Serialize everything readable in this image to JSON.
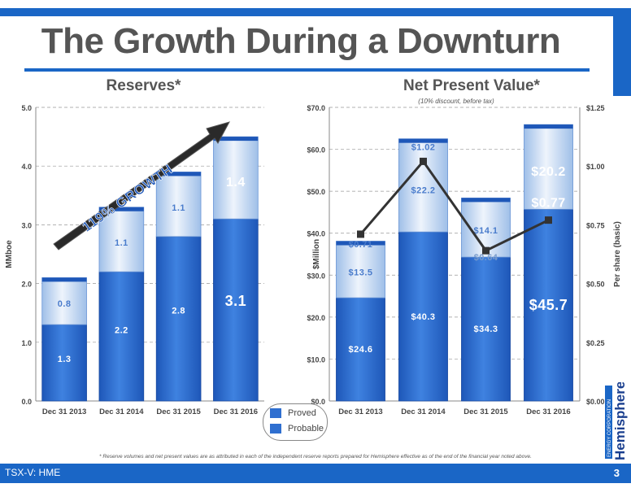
{
  "slide": {
    "title": "The Growth During a Downturn",
    "footnote": "* Reserve volumes and net present values are as attributed in each of the independent reserve reports prepared for Hemisphere effective as of the end of the financial year noted above.",
    "ticker": "TSX-V: HME",
    "page": "3",
    "logo_text": "Hemisphere",
    "logo_tagline": "ENERGY CORPORATION"
  },
  "legend": {
    "proved": "Proved",
    "probable": "Probable"
  },
  "colors": {
    "proved": "#2f6fd0",
    "probable": "#cfe0f6",
    "accent": "#1a66c6",
    "line": "#333333"
  },
  "chart_data": [
    {
      "type": "bar",
      "stacked": true,
      "title": "Reserves*",
      "ylabel": "MMboe",
      "ylim": [
        0,
        5
      ],
      "yticks": [
        "0.0",
        "1.0",
        "2.0",
        "3.0",
        "4.0",
        "5.0"
      ],
      "categories": [
        "Dec 31 2013",
        "Dec 31 2014",
        "Dec 31 2015",
        "Dec 31 2016"
      ],
      "series": [
        {
          "name": "Proved",
          "values": [
            1.3,
            2.2,
            2.8,
            3.1
          ],
          "labels": [
            "1.3",
            "2.2",
            "2.8",
            "3.1"
          ]
        },
        {
          "name": "Probable",
          "values": [
            0.8,
            1.1,
            1.1,
            1.4
          ],
          "labels": [
            "0.8",
            "1.1",
            "1.1",
            "1.4"
          ]
        }
      ],
      "annotation": "119% GROWTH"
    },
    {
      "type": "bar",
      "stacked": true,
      "title": "Net Present Value*",
      "subtitle": "(10% discount, before tax)",
      "ylabel": "$Million",
      "y2label": "Per share (basic)",
      "ylim": [
        0,
        70
      ],
      "y2lim": [
        0,
        1.25
      ],
      "yticks": [
        "$0.0",
        "$10.0",
        "$20.0",
        "$30.0",
        "$40.0",
        "$50.0",
        "$60.0",
        "$70.0"
      ],
      "y2ticks": [
        "$0.00",
        "$0.25",
        "$0.50",
        "$0.75",
        "$1.00",
        "$1.25"
      ],
      "categories": [
        "Dec 31 2013",
        "Dec 31 2014",
        "Dec 31 2015",
        "Dec 31 2016"
      ],
      "series": [
        {
          "name": "Proved",
          "values": [
            24.6,
            40.3,
            34.3,
            45.7
          ],
          "labels": [
            "$24.6",
            "$40.3",
            "$34.3",
            "$45.7"
          ]
        },
        {
          "name": "Probable",
          "values": [
            13.5,
            22.2,
            14.1,
            20.2
          ],
          "labels": [
            "$13.5",
            "$22.2",
            "$14.1",
            "$20.2"
          ]
        }
      ],
      "per_share": {
        "values": [
          0.71,
          1.02,
          0.64,
          0.77
        ],
        "labels": [
          "$0.71",
          "$1.02",
          "$0.64",
          "$0.77"
        ]
      }
    }
  ]
}
